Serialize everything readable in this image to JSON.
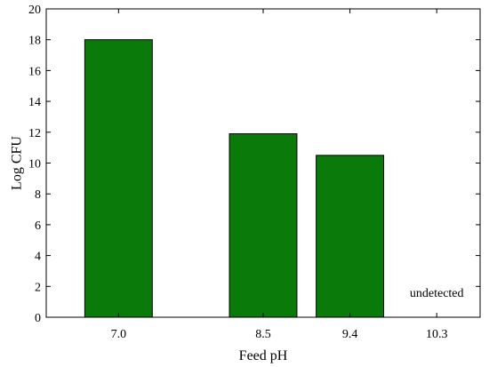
{
  "chart_data": {
    "type": "bar",
    "categories": [
      "7.0",
      "8.5",
      "9.4",
      "10.3"
    ],
    "x": [
      7.0,
      8.5,
      9.4,
      10.3
    ],
    "values": [
      18.0,
      11.9,
      10.5,
      0
    ],
    "xlabel": "Feed pH",
    "ylabel": "Log CFU",
    "ylim": [
      0,
      20
    ],
    "xlim": [
      6.25,
      10.75
    ],
    "yticks": [
      0,
      2,
      4,
      6,
      8,
      10,
      12,
      14,
      16,
      18,
      20
    ],
    "bar_width": 0.7,
    "grid": false,
    "bar_color": "#0a7a0a",
    "annotations": [
      {
        "text": "undetected",
        "x": 10.3,
        "y": 1.6
      }
    ]
  }
}
